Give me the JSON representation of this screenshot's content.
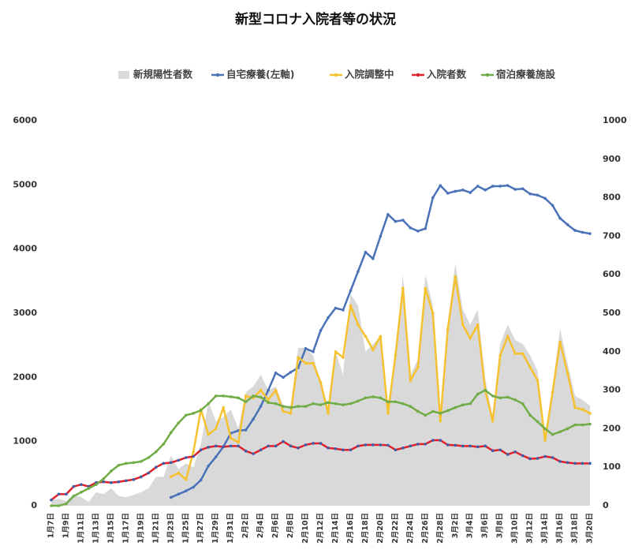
{
  "chart_data": {
    "type": "line",
    "title": "新型コロナ入院者等の状況",
    "categories": [
      "1月7日",
      null,
      "1月9日",
      null,
      "1月11日",
      null,
      "1月13日",
      null,
      "1月15日",
      null,
      "1月17日",
      null,
      "1月19日",
      null,
      "1月21日",
      null,
      "1月23日",
      null,
      "1月25日",
      null,
      "1月27日",
      null,
      "1月29日",
      null,
      "1月31日",
      null,
      "2月2日",
      null,
      "2月4日",
      null,
      "2月6日",
      null,
      "2月8日",
      null,
      "2月10日",
      null,
      "2月12日",
      null,
      "2月14日",
      null,
      "2月16日",
      null,
      "2月18日",
      null,
      "2月20日",
      null,
      "2月22日",
      null,
      "2月24日",
      null,
      "2月26日",
      null,
      "2月28日",
      null,
      "3月2日",
      null,
      "3月4日",
      null,
      "3月6日",
      null,
      "3月8日",
      null,
      "3月10日",
      null,
      "3月12日",
      null,
      "3月14日",
      null,
      "3月16日",
      null,
      "3月18日",
      null,
      "3月20日"
    ],
    "ylim": [
      0,
      6000
    ],
    "yticks": [
      0,
      1000,
      2000,
      3000,
      4000,
      5000,
      6000
    ],
    "y2lim": [
      0,
      1000
    ],
    "y2ticks": [
      0,
      100,
      200,
      300,
      400,
      500,
      600,
      700,
      800,
      900,
      1000
    ],
    "grid": false,
    "legend": "top",
    "series": [
      {
        "name": "新規陽性者数",
        "type": "area",
        "color": "#d9d9d9",
        "axis": "y2",
        "values": [
          15,
          18,
          12,
          30,
          22,
          10,
          35,
          30,
          45,
          25,
          22,
          28,
          35,
          45,
          75,
          75,
          130,
          95,
          110,
          100,
          160,
          270,
          220,
          230,
          250,
          200,
          295,
          310,
          340,
          300,
          310,
          260,
          260,
          410,
          410,
          390,
          320,
          260,
          400,
          340,
          550,
          520,
          400,
          420,
          440,
          250,
          390,
          600,
          340,
          380,
          600,
          520,
          230,
          470,
          630,
          510,
          470,
          510,
          330,
          230,
          420,
          470,
          430,
          420,
          390,
          350,
          180,
          310,
          460,
          370,
          285,
          275,
          260
        ]
      },
      {
        "name": "自宅療養(左軸)",
        "color": "#4a72b8",
        "values": [
          null,
          null,
          null,
          null,
          null,
          null,
          null,
          null,
          null,
          null,
          null,
          null,
          null,
          null,
          null,
          null,
          130,
          180,
          230,
          290,
          400,
          620,
          760,
          920,
          1130,
          1170,
          1180,
          1350,
          1550,
          1800,
          2070,
          2000,
          2080,
          2150,
          2450,
          2400,
          2730,
          2930,
          3080,
          3050,
          3350,
          3650,
          3950,
          3850,
          4200,
          4540,
          4430,
          4450,
          4330,
          4280,
          4320,
          4800,
          4990,
          4870,
          4900,
          4920,
          4880,
          4980,
          4920,
          4980,
          4980,
          4990,
          4930,
          4940,
          4860,
          4840,
          4790,
          4680,
          4480,
          4380,
          4290,
          4260,
          4240
        ]
      },
      {
        "name": "入院調整中",
        "color": "#f5c12e",
        "axis": "y2",
        "values": [
          null,
          null,
          null,
          null,
          null,
          null,
          null,
          null,
          null,
          null,
          null,
          null,
          null,
          null,
          null,
          null,
          75,
          85,
          68,
          140,
          250,
          185,
          200,
          255,
          175,
          165,
          285,
          280,
          300,
          275,
          300,
          245,
          240,
          385,
          370,
          370,
          320,
          240,
          400,
          385,
          520,
          470,
          440,
          405,
          440,
          240,
          390,
          565,
          325,
          360,
          565,
          500,
          220,
          460,
          595,
          470,
          435,
          470,
          300,
          220,
          390,
          440,
          395,
          395,
          360,
          325,
          170,
          295,
          425,
          345,
          255,
          250,
          240
        ]
      },
      {
        "name": "入院者数",
        "color": "#e0202a",
        "axis": "y2",
        "values": [
          15,
          30,
          30,
          50,
          55,
          50,
          60,
          62,
          60,
          62,
          65,
          68,
          75,
          85,
          100,
          110,
          112,
          118,
          125,
          128,
          145,
          152,
          155,
          153,
          155,
          155,
          142,
          135,
          145,
          155,
          155,
          167,
          155,
          150,
          158,
          162,
          162,
          150,
          148,
          145,
          145,
          155,
          158,
          158,
          158,
          157,
          145,
          150,
          155,
          160,
          160,
          170,
          170,
          158,
          157,
          155,
          155,
          153,
          155,
          143,
          145,
          133,
          140,
          130,
          122,
          123,
          128,
          125,
          115,
          112,
          110,
          110,
          110
        ]
      },
      {
        "name": "宿泊療養施設",
        "color": "#70ad47",
        "axis": "y2",
        "values": [
          0,
          0,
          5,
          25,
          35,
          45,
          55,
          70,
          90,
          105,
          110,
          112,
          115,
          125,
          140,
          160,
          190,
          215,
          235,
          240,
          248,
          265,
          285,
          285,
          283,
          280,
          270,
          285,
          282,
          268,
          265,
          258,
          255,
          258,
          258,
          265,
          262,
          268,
          265,
          262,
          265,
          272,
          280,
          283,
          280,
          270,
          270,
          265,
          258,
          245,
          235,
          245,
          240,
          247,
          255,
          262,
          265,
          290,
          300,
          285,
          280,
          282,
          275,
          265,
          235,
          218,
          200,
          185,
          192,
          200,
          210,
          210,
          212
        ]
      }
    ]
  }
}
